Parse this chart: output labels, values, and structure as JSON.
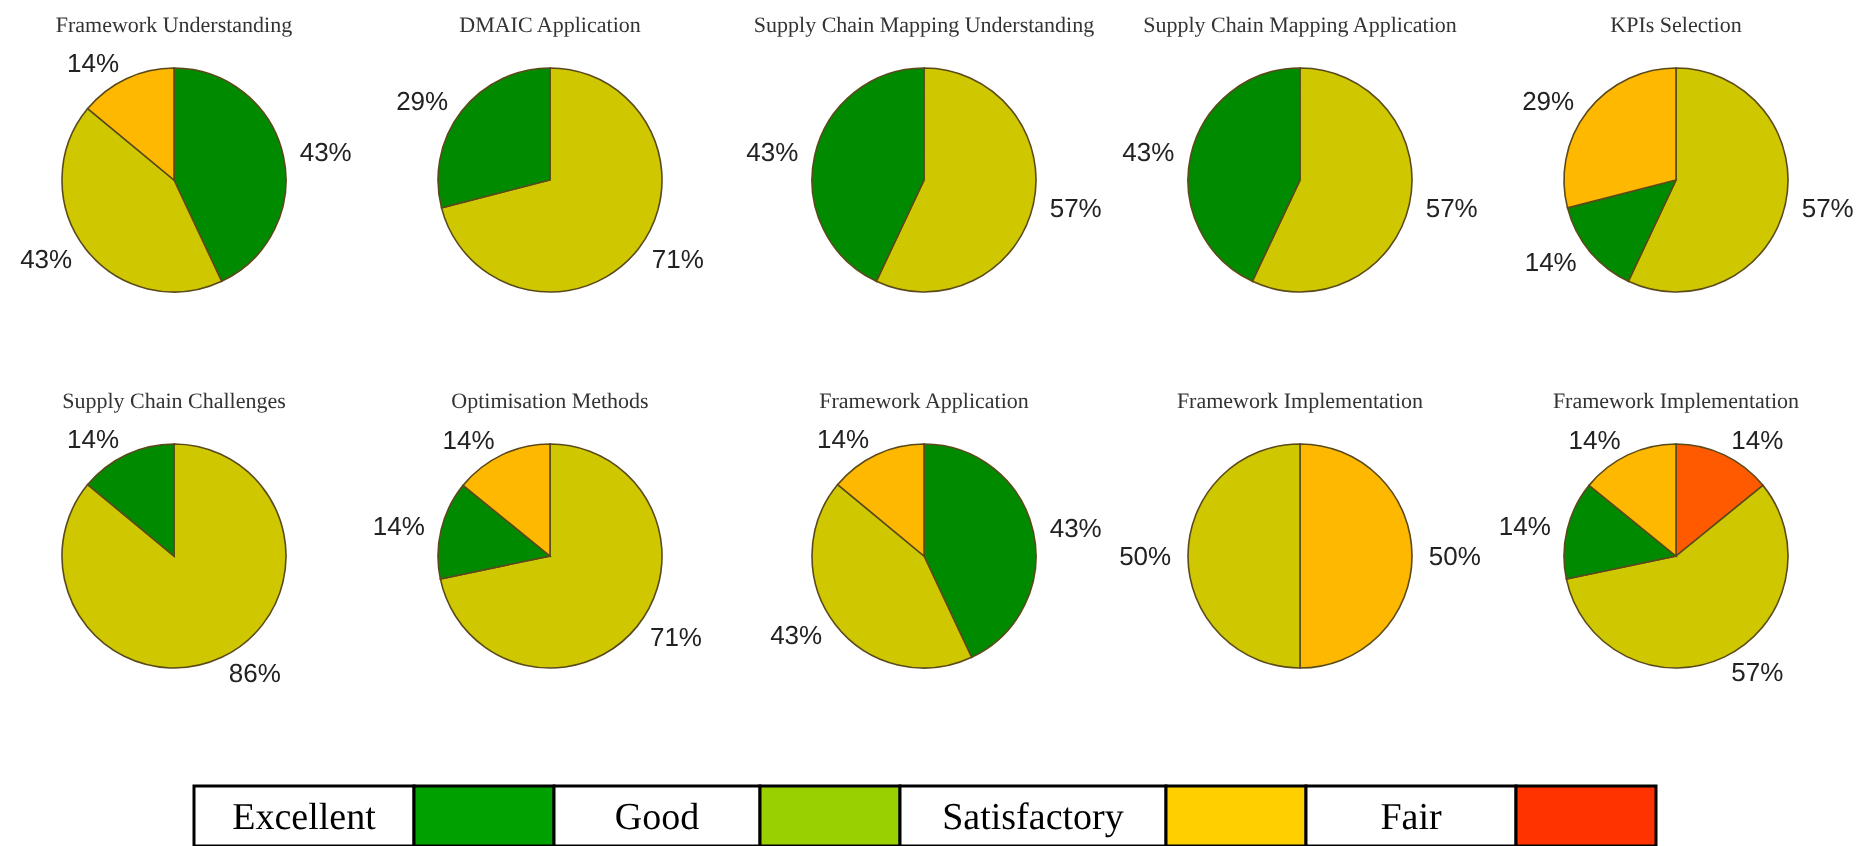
{
  "chart_data": [
    {
      "type": "pie",
      "title": "Framework Understanding",
      "categories": [
        null,
        null,
        null
      ],
      "values": [
        43,
        43,
        14
      ],
      "colors": [
        "#008a00",
        "#cfc800",
        "#ffb800"
      ],
      "value_labels": [
        "43%",
        "43%",
        "14%"
      ]
    },
    {
      "type": "pie",
      "title": "DMAIC Application",
      "categories": [
        null,
        null
      ],
      "values": [
        71,
        29
      ],
      "colors": [
        "#cfc800",
        "#008a00"
      ],
      "value_labels": [
        "71%",
        "29%"
      ]
    },
    {
      "type": "pie",
      "title": "Supply Chain Mapping Understanding",
      "categories": [
        null,
        null
      ],
      "values": [
        57,
        43
      ],
      "colors": [
        "#cfc800",
        "#008a00"
      ],
      "value_labels": [
        "57%",
        "43%"
      ]
    },
    {
      "type": "pie",
      "title": "Supply Chain Mapping Application",
      "categories": [
        null,
        null
      ],
      "values": [
        57,
        43
      ],
      "colors": [
        "#cfc800",
        "#008a00"
      ],
      "value_labels": [
        "57%",
        "43%"
      ]
    },
    {
      "type": "pie",
      "title": "KPIs Selection",
      "categories": [
        null,
        null,
        null
      ],
      "values": [
        57,
        14,
        29
      ],
      "colors": [
        "#cfc800",
        "#008a00",
        "#ffb800"
      ],
      "value_labels": [
        "57%",
        "14%",
        "29%"
      ]
    },
    {
      "type": "pie",
      "title": "Supply Chain Challenges",
      "categories": [
        null,
        null
      ],
      "values": [
        86,
        14
      ],
      "colors": [
        "#cfc800",
        "#008a00"
      ],
      "value_labels": [
        "86%",
        "14%"
      ]
    },
    {
      "type": "pie",
      "title": "Optimisation Methods",
      "categories": [
        null,
        null,
        null
      ],
      "values": [
        71,
        14,
        14
      ],
      "colors": [
        "#cfc800",
        "#008a00",
        "#ffb800"
      ],
      "value_labels": [
        "71%",
        "14%",
        "14%"
      ]
    },
    {
      "type": "pie",
      "title": "Framework Application",
      "categories": [
        null,
        null,
        null
      ],
      "values": [
        43,
        43,
        14
      ],
      "colors": [
        "#008a00",
        "#cfc800",
        "#ffb800"
      ],
      "value_labels": [
        "43%",
        "43%",
        "14%"
      ]
    },
    {
      "type": "pie",
      "title": "Framework Implementation",
      "categories": [
        null,
        null
      ],
      "values": [
        50,
        50
      ],
      "colors": [
        "#ffb800",
        "#cfc800"
      ],
      "value_labels": [
        "50%",
        "50%"
      ]
    },
    {
      "type": "pie",
      "title": "Framework Implementation",
      "categories": [
        null,
        null,
        null,
        null
      ],
      "values": [
        14,
        57,
        14,
        14
      ],
      "colors": [
        "#ff5a00",
        "#cfc800",
        "#008a00",
        "#ffb800"
      ],
      "value_labels": [
        "14%",
        "57%",
        "14%",
        "14%"
      ]
    },
    {
      "type": "other",
      "categories": [
        "Excellent",
        "Good",
        "Satisfactory",
        "Fair"
      ],
      "colors": [
        "#00a000",
        "#99d100",
        "#ffd000",
        "#ff3300"
      ]
    }
  ]
}
